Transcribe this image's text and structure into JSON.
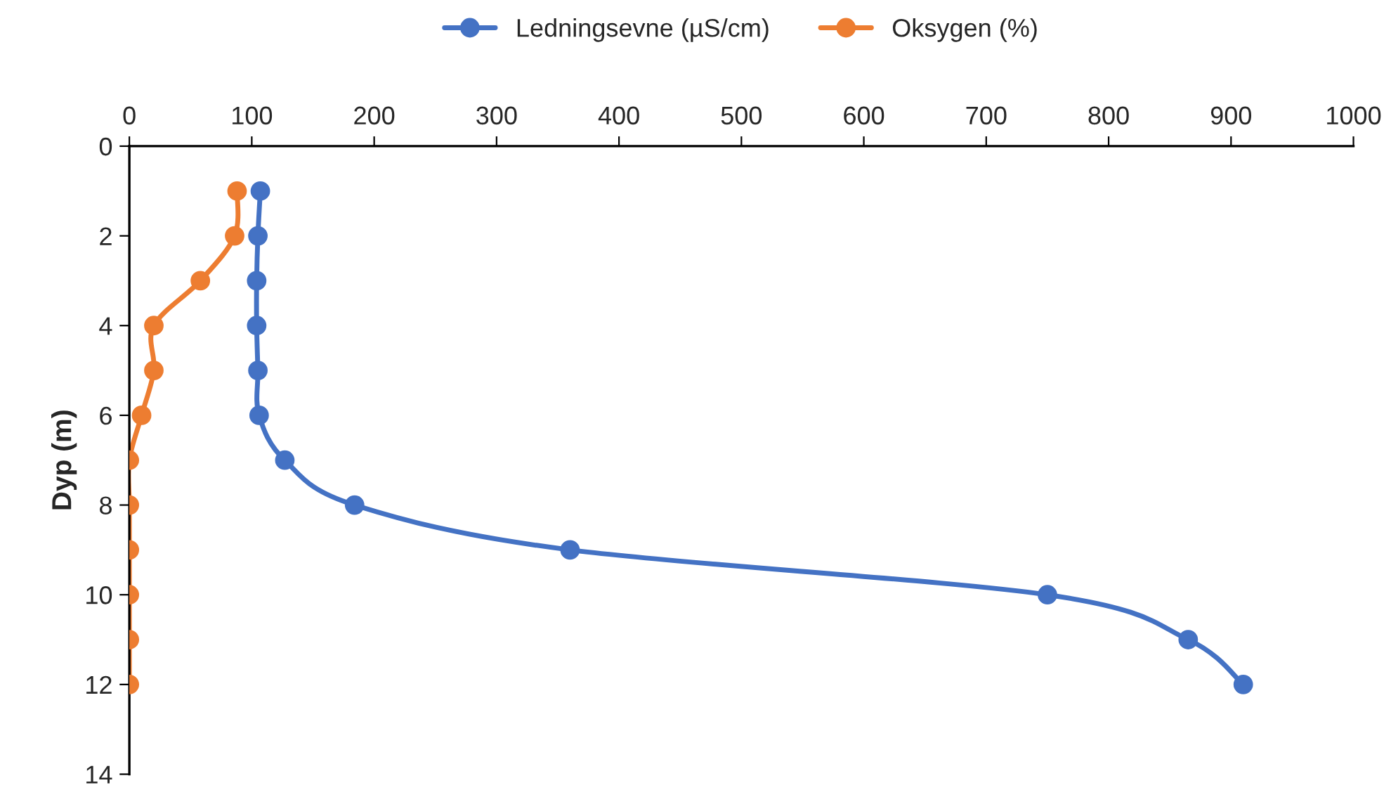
{
  "chart_data": {
    "type": "line",
    "orientation": "horizontal",
    "ylabel": "Dyp (m)",
    "x": [
      1,
      2,
      3,
      4,
      5,
      6,
      7,
      8,
      9,
      10,
      11,
      12
    ],
    "series": [
      {
        "name": "Ledningsevne (µS/cm)",
        "color": "#4472c4",
        "values": [
          107,
          105,
          104,
          104,
          105,
          106,
          127,
          184,
          360,
          750,
          865,
          910
        ]
      },
      {
        "name": "Oksygen (%)",
        "color": "#ed7d31",
        "values": [
          88,
          86,
          58,
          20,
          20,
          10,
          0,
          0,
          0,
          0,
          0,
          0
        ]
      }
    ],
    "xlim": [
      0,
      1000
    ],
    "xticks": [
      0,
      100,
      200,
      300,
      400,
      500,
      600,
      700,
      800,
      900,
      1000
    ],
    "ylim": [
      14,
      0
    ],
    "yticks": [
      0,
      2,
      4,
      6,
      8,
      10,
      12,
      14
    ],
    "grid": false,
    "legend": "top",
    "marker": "circle",
    "line_style": "solid"
  }
}
